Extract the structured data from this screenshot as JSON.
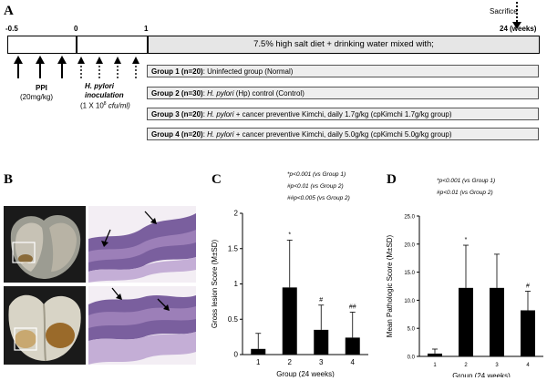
{
  "panelA": {
    "letter": "A",
    "sacrifice": "Sacrifice",
    "timeline": {
      "ticks": [
        "-0.5",
        "0",
        "1"
      ],
      "end_label": "24  (weeks)",
      "diet_text": "7.5% high salt diet + drinking water mixed with;"
    },
    "ppi_label": "PPI",
    "ppi_dose": "(20mg/kg)",
    "hp_label_1": "H. pylori",
    "hp_label_2": "inoculation",
    "hp_dose_prefix": "(1 X 10",
    "hp_dose_exp": "8",
    "hp_dose_unit": " cfu/ml)",
    "groups": [
      {
        "name": "Group 1",
        "n": "(n=20)",
        "pre": ": Uninfected group (Normal)",
        "italic": "",
        "post": ""
      },
      {
        "name": "Group 2",
        "n": "(n=30)",
        "pre": ": ",
        "italic": "H. pylori",
        "post": " (Hp) control (Control)"
      },
      {
        "name": "Group 3",
        "n": "(n=20)",
        "pre": ": ",
        "italic": "H. pylori",
        "post": " + cancer preventive Kimchi, daily 1.7g/kg (cpKimchi 1.7g/kg group)"
      },
      {
        "name": "Group 4",
        "n": "(n=20)",
        "pre": ": ",
        "italic": "H. pylori",
        "post": " + cancer preventive Kimchi, daily 5.0g/kg (cpKimchi 5.0g/kg group)"
      }
    ]
  },
  "panelB": {
    "letter": "B"
  },
  "panelC": {
    "letter": "C",
    "notes": [
      "*p<0.001 (vs Group 1)",
      "#p<0.01 (vs Group 2)",
      "##p<0.005 (vs Group 2)"
    ]
  },
  "panelD": {
    "letter": "D",
    "notes": [
      "*p<0.001 (vs Group 1)",
      "#p<0.01 (vs Group 2)"
    ]
  },
  "chart_data": [
    {
      "type": "bar",
      "categories": [
        "1",
        "2",
        "3",
        "4"
      ],
      "values": [
        0.08,
        0.95,
        0.35,
        0.24
      ],
      "errors": [
        0.22,
        0.67,
        0.35,
        0.36
      ],
      "markers": [
        "",
        "*",
        "#",
        "##"
      ],
      "xlabel": "Group (24 weeks)",
      "ylabel": "Gross lesion Score (M±SD)",
      "ylim": [
        0,
        2
      ],
      "yticks": [
        "0",
        "0.5",
        "1",
        "1.5",
        "2"
      ],
      "grid": false
    },
    {
      "type": "bar",
      "categories": [
        "1",
        "2",
        "3",
        "4"
      ],
      "values": [
        0.5,
        12.2,
        12.2,
        8.2
      ],
      "errors": [
        0.8,
        7.6,
        6.0,
        3.4
      ],
      "markers": [
        "",
        "*",
        "",
        "#"
      ],
      "xlabel": "Group (24 weeks)",
      "ylabel": "Mean Pathologic Score (M±SD)",
      "ylim": [
        0,
        25
      ],
      "yticks": [
        "0.0",
        "5.0",
        "10.0",
        "15.0",
        "20.0",
        "25.0"
      ],
      "grid": false
    }
  ]
}
